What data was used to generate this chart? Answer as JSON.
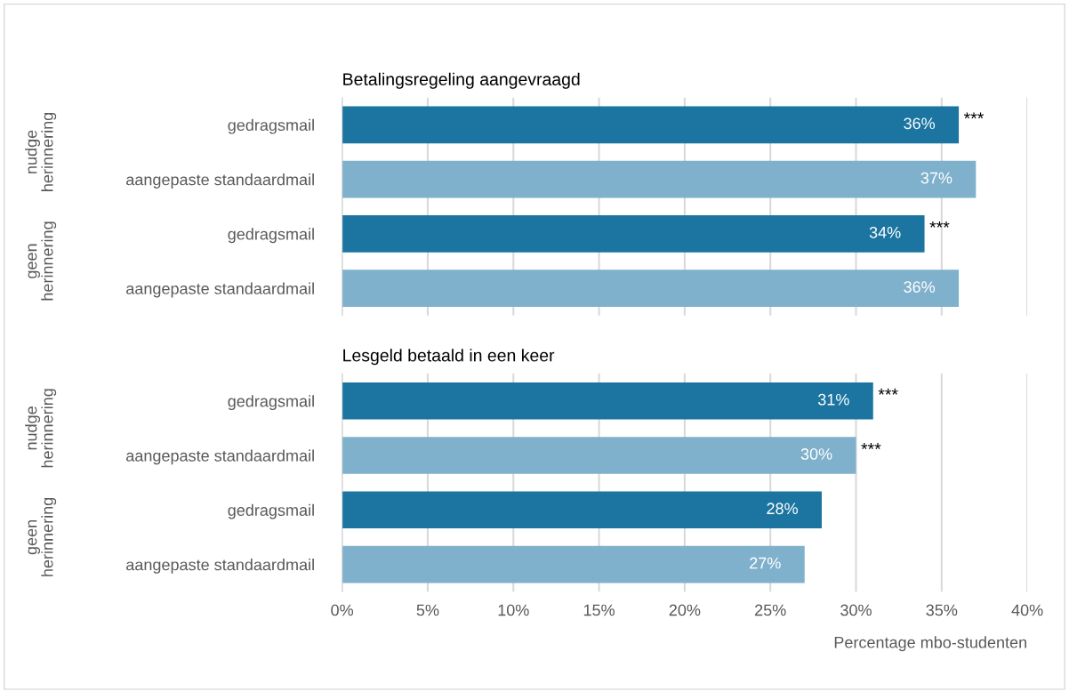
{
  "chart_data": [
    {
      "type": "bar",
      "orientation": "horizontal",
      "title": "Betalingsregeling aangevraagd",
      "categories": [
        "gedragsmail",
        "aangepaste standaardmail",
        "gedragsmail",
        "aangepaste standaardmail"
      ],
      "values": [
        36,
        37,
        34,
        36
      ],
      "colors": [
        "#1b75a0",
        "#7fb1cc",
        "#1b75a0",
        "#7fb1cc"
      ],
      "value_labels": [
        "36%",
        "37%",
        "34%",
        "36%"
      ],
      "annotations": [
        "nudge\nherinnering",
        "geen\nherinnering",
        {
          "text": "***",
          "x": 36
        },
        {
          "text": "***",
          "x": 34
        }
      ],
      "xlim": [
        0,
        40
      ],
      "xticks": [
        {
          "value": 0,
          "label": null
        },
        {
          "value": 5,
          "label": null
        },
        {
          "value": 10,
          "label": null
        },
        {
          "value": 15,
          "label": null
        },
        {
          "value": 20,
          "label": null
        },
        {
          "value": 25,
          "label": null
        },
        {
          "value": 30,
          "label": null
        },
        {
          "value": 35,
          "label": null
        },
        {
          "value": 40,
          "label": null
        }
      ],
      "grid": "x",
      "tick_labels": "y"
    },
    {
      "type": "bar",
      "orientation": "horizontal",
      "title": "Lesgeld betaald in een keer",
      "xlabel": "Percentage mbo-studenten",
      "categories": [
        "gedragsmail",
        "aangepaste standaardmail",
        "gedragsmail",
        "aangepaste standaardmail"
      ],
      "values": [
        31,
        30,
        28,
        27
      ],
      "colors": [
        "#1b75a0",
        "#7fb1cc",
        "#1b75a0",
        "#7fb1cc"
      ],
      "value_labels": [
        "31%",
        "30%",
        "28%",
        "27%"
      ],
      "annotations": [
        "nudge\nherinnering",
        "geen\nherinnering",
        {
          "text": "***",
          "x": 31
        },
        {
          "text": "***",
          "x": 30
        }
      ],
      "xlim": [
        0,
        40
      ],
      "xticks": [
        {
          "value": 0,
          "label": "0%"
        },
        {
          "value": 5,
          "label": "5%"
        },
        {
          "value": 10,
          "label": "10%"
        },
        {
          "value": 15,
          "label": "15%"
        },
        {
          "value": 20,
          "label": "20%"
        },
        {
          "value": 25,
          "label": "25%"
        },
        {
          "value": 30,
          "label": "30%"
        },
        {
          "value": 35,
          "label": "35%"
        },
        {
          "value": 40,
          "label": "40%"
        }
      ],
      "grid": "x"
    }
  ]
}
